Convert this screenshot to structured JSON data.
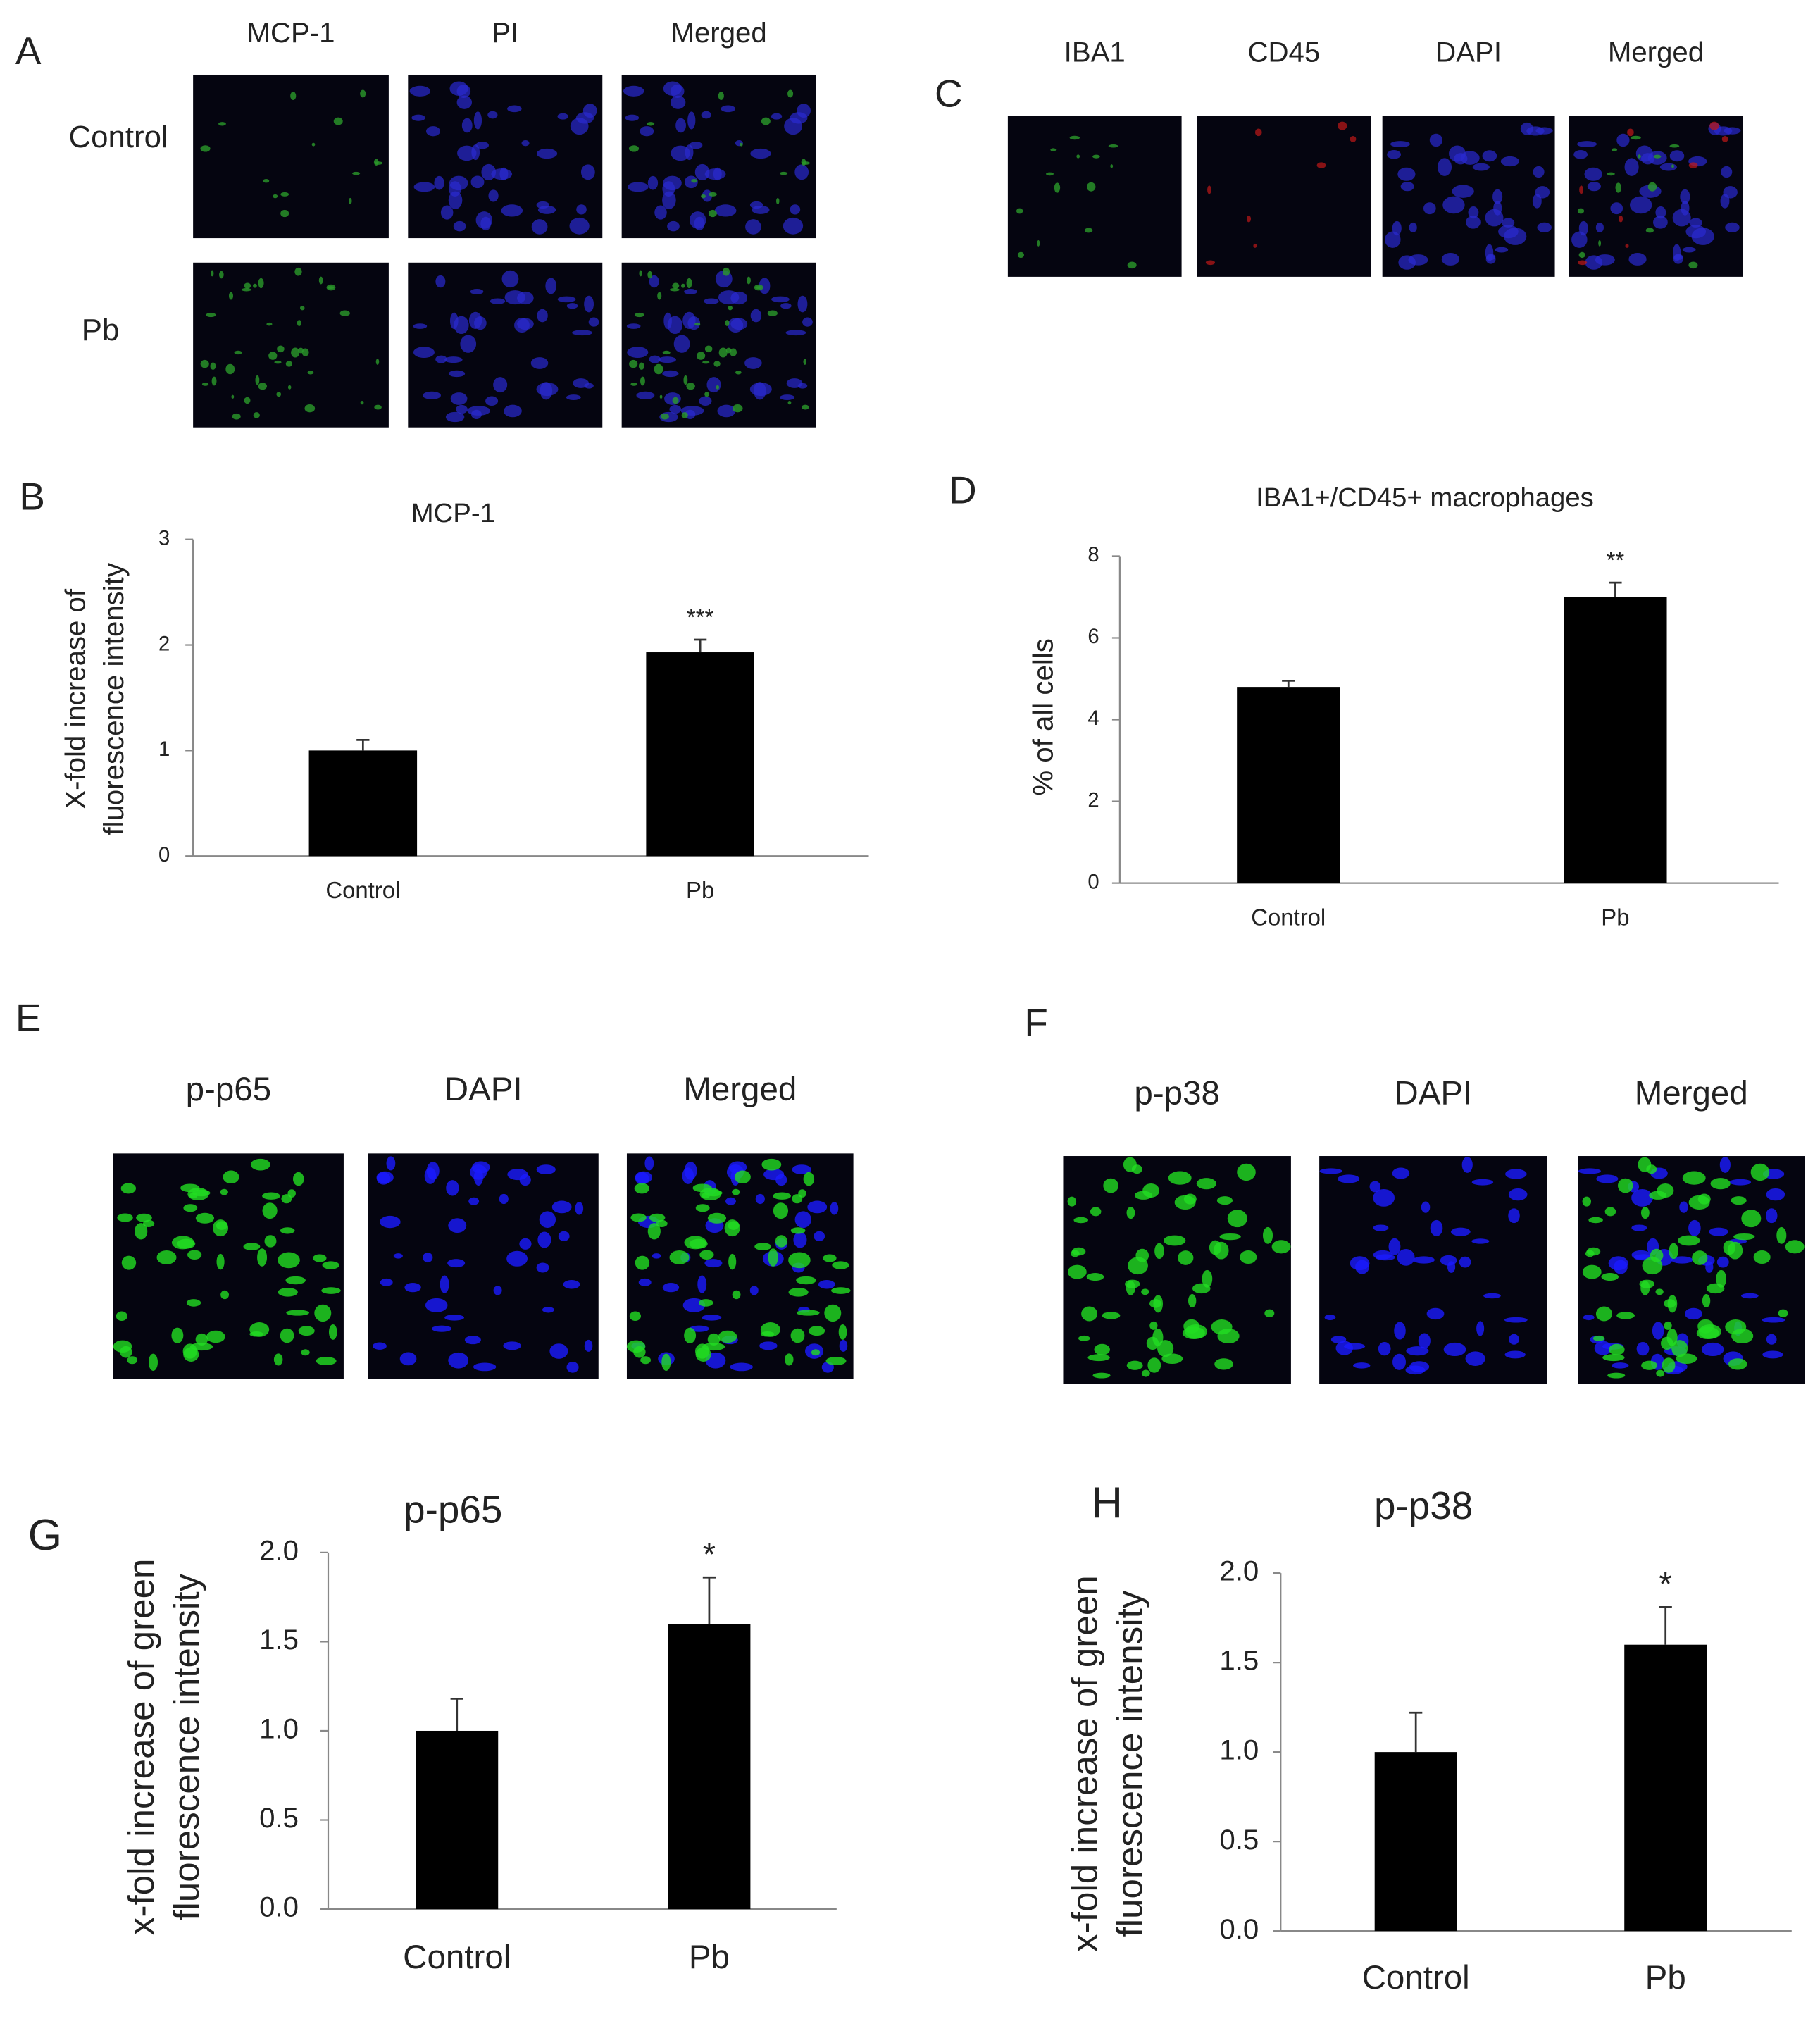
{
  "image_panels": [
    {
      "label": "A",
      "columns": [
        "MCP-1",
        "PI",
        "Merged"
      ],
      "rows": [
        "Control",
        "Pb"
      ]
    },
    {
      "label": "C",
      "columns": [
        "IBA1",
        "CD45",
        "DAPI",
        "Merged"
      ]
    },
    {
      "label": "E",
      "columns": [
        "p-p65",
        "DAPI",
        "Merged"
      ]
    },
    {
      "label": "F",
      "columns": [
        "p-p38",
        "DAPI",
        "Merged"
      ]
    }
  ],
  "chart_data": [
    {
      "type": "bar",
      "panel": "B",
      "title": "MCP-1",
      "ylabel": [
        "X-fold increase of",
        "fluorescence intensity"
      ],
      "categories": [
        "Control",
        "Pb"
      ],
      "values": [
        1.0,
        1.93
      ],
      "errors": [
        0.1,
        0.12
      ],
      "annotations": [
        null,
        "***"
      ],
      "color": "#000000",
      "ylim": [
        0,
        3
      ],
      "yticks": [
        0,
        1,
        2,
        3
      ]
    },
    {
      "type": "bar",
      "panel": "D",
      "title": "IBA1+/CD45+ macrophages",
      "ylabel": [
        "% of all cells"
      ],
      "categories": [
        "Control",
        "Pb"
      ],
      "values": [
        4.8,
        7.0
      ],
      "errors": [
        0.15,
        0.35
      ],
      "annotations": [
        null,
        "**"
      ],
      "color": "#000000",
      "ylim": [
        0,
        8
      ],
      "yticks": [
        0,
        2,
        4,
        6,
        8
      ]
    },
    {
      "type": "bar",
      "panel": "G",
      "title": "p-p65",
      "ylabel": [
        "x-fold increase of green",
        "fluorescence intensity"
      ],
      "categories": [
        "Control",
        "Pb"
      ],
      "values": [
        1.0,
        1.6
      ],
      "errors": [
        0.18,
        0.26
      ],
      "annotations": [
        null,
        "*"
      ],
      "color": "#000000",
      "ylim": [
        0,
        2
      ],
      "yticks": [
        {
          "value": 0,
          "label": "0.0"
        },
        {
          "value": 0.5,
          "label": "0.5"
        },
        {
          "value": 1,
          "label": "1.0"
        },
        {
          "value": 1.5,
          "label": "1.5"
        },
        {
          "value": 2,
          "label": "2.0"
        }
      ]
    },
    {
      "type": "bar",
      "panel": "H",
      "title": "p-p38",
      "ylabel": [
        "x-fold increase of green",
        "fluorescence intensity"
      ],
      "categories": [
        "Control",
        "Pb"
      ],
      "values": [
        1.0,
        1.6
      ],
      "errors": [
        0.22,
        0.21
      ],
      "annotations": [
        null,
        "*"
      ],
      "color": "#000000",
      "ylim": [
        0,
        2
      ],
      "yticks": [
        {
          "value": 0,
          "label": "0.0"
        },
        {
          "value": 0.5,
          "label": "0.5"
        },
        {
          "value": 1,
          "label": "1.0"
        },
        {
          "value": 1.5,
          "label": "1.5"
        },
        {
          "value": 2,
          "label": "2.0"
        }
      ]
    }
  ]
}
